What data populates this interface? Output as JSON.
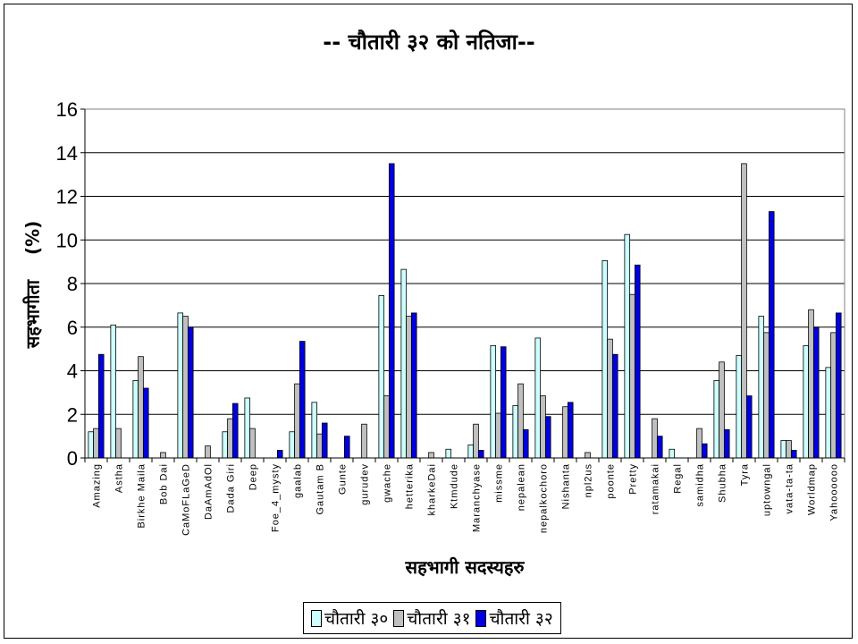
{
  "chart_data": {
    "type": "bar",
    "title": "-- चौतारी  ३२ को नतिजा--",
    "xlabel": "सहभागी सदस्यहरु",
    "ylabel": "सहभागीता    (%)",
    "ylim": [
      0,
      16
    ],
    "yticks": [
      0,
      2,
      4,
      6,
      8,
      10,
      12,
      14,
      16
    ],
    "grid": true,
    "legend_position": "bottom",
    "categories": [
      "Amazing",
      "Astha",
      "Birkhe Maila",
      "Bob Dai",
      "CaMoFLaGeD",
      "DaAmAdOl",
      "Dada Giri",
      "Deep",
      "Foe_4_mysty",
      "gaalab",
      "Gautam B",
      "Gunte",
      "gurudev",
      "gwache",
      "hetterika",
      "kharkeDai",
      "Ktmdude",
      "Maranchyase",
      "missme",
      "nepalean",
      "nepalkochoro",
      "Nishanta",
      "npl2us",
      "poonte",
      "Pretty",
      "ratamakai",
      "Regal",
      "samidha",
      "Shubha",
      "Tyra",
      "uptowngal",
      "vata-ta-ta",
      "Worldmap",
      "Yahoooooo"
    ],
    "series": [
      {
        "name": "चौतारी ३०",
        "color": "#ccffff",
        "values": [
          1.2,
          6.1,
          3.55,
          0,
          6.65,
          0,
          1.2,
          2.75,
          0,
          1.2,
          2.55,
          0,
          0,
          7.45,
          8.65,
          0,
          0.4,
          0.6,
          5.15,
          2.4,
          5.5,
          0,
          0,
          9.05,
          10.25,
          0,
          0.4,
          0,
          3.55,
          4.7,
          6.5,
          0.8,
          5.15,
          4.15
        ]
      },
      {
        "name": "चौतारी ३१",
        "color": "#c0c0c0",
        "values": [
          1.35,
          1.35,
          4.65,
          0.25,
          6.5,
          0.55,
          1.8,
          1.35,
          0,
          3.4,
          1.1,
          0,
          1.55,
          2.85,
          6.5,
          0.25,
          0,
          1.55,
          2.05,
          3.4,
          2.85,
          2.35,
          0.25,
          5.45,
          7.5,
          1.8,
          0,
          1.35,
          4.4,
          13.5,
          5.75,
          0.8,
          6.8,
          5.75
        ]
      },
      {
        "name": "चौतारी ३२",
        "color": "#0000e0",
        "values": [
          4.75,
          0,
          3.2,
          0,
          6.0,
          0,
          2.5,
          0,
          0.35,
          5.35,
          1.6,
          1.0,
          0,
          13.5,
          6.65,
          0,
          0,
          0.35,
          5.1,
          1.3,
          1.9,
          2.55,
          0,
          4.75,
          8.85,
          1.0,
          0,
          0.65,
          1.3,
          2.85,
          11.3,
          0.35,
          6.0,
          6.65
        ]
      }
    ]
  }
}
